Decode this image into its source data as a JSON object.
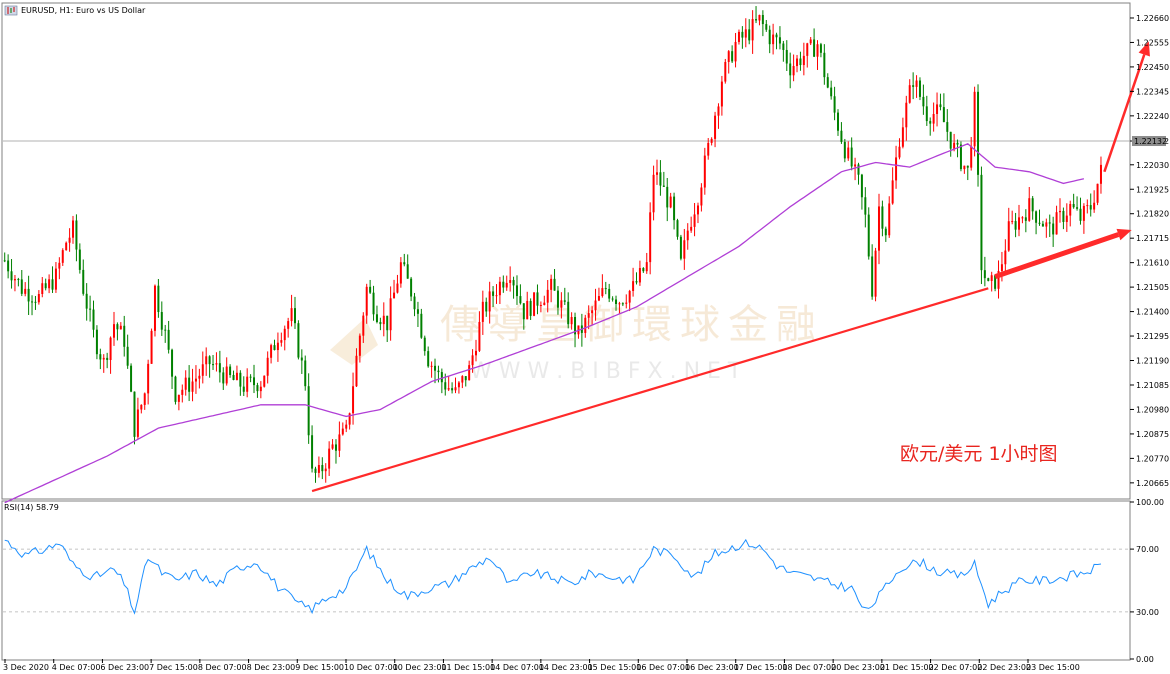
{
  "window": {
    "title": "EURUSD, H1: Euro vs US Dollar"
  },
  "annotation": {
    "text": "欧元/美元 1小时图"
  },
  "watermark": {
    "text_cn": "傳導皇御環球金融",
    "text_en": "W W W . B I B F X . N E T"
  },
  "colors": {
    "bull": "#ff0000",
    "bear": "#008000",
    "ma": "#b03fd6",
    "rsi": "#1e90ff",
    "arrow": "#ff2a2a"
  },
  "chart_data": [
    {
      "type": "candlestick",
      "symbol": "EURUSD",
      "timeframe": "H1",
      "price_ticks": [
        "1.22660",
        "1.22555",
        "1.22450",
        "1.22345",
        "1.22240",
        "1.22132",
        "1.22030",
        "1.21925",
        "1.21820",
        "1.21715",
        "1.21610",
        "1.21505",
        "1.21400",
        "1.21295",
        "1.21190",
        "1.21085",
        "1.20980",
        "1.20875",
        "1.20770",
        "1.20665"
      ],
      "current_price": "1.22132",
      "ylim": [
        1.206,
        1.2272
      ],
      "time_labels": [
        "3 Dec 2020",
        "4 Dec 07:00",
        "6 Dec 23:00",
        "7 Dec 15:00",
        "8 Dec 07:00",
        "8 Dec 23:00",
        "9 Dec 15:00",
        "10 Dec 07:00",
        "10 Dec 23:00",
        "11 Dec 15:00",
        "14 Dec 07:00",
        "14 Dec 23:00",
        "15 Dec 15:00",
        "16 Dec 07:00",
        "16 Dec 23:00",
        "17 Dec 15:00",
        "18 Dec 07:00",
        "20 Dec 23:00",
        "21 Dec 15:00",
        "22 Dec 07:00",
        "22 Dec 23:00",
        "23 Dec 15:00"
      ],
      "close_path": [
        [
          0,
          1.2162
        ],
        [
          5,
          1.215
        ],
        [
          10,
          1.2146
        ],
        [
          15,
          1.2155
        ],
        [
          18,
          1.217
        ],
        [
          20,
          1.2175
        ],
        [
          23,
          1.215
        ],
        [
          26,
          1.213
        ],
        [
          29,
          1.2118
        ],
        [
          32,
          1.2135
        ],
        [
          35,
          1.2128
        ],
        [
          38,
          1.209
        ],
        [
          41,
          1.2105
        ],
        [
          44,
          1.215
        ],
        [
          47,
          1.213
        ],
        [
          50,
          1.2105
        ],
        [
          55,
          1.211
        ],
        [
          60,
          1.2118
        ],
        [
          65,
          1.2112
        ],
        [
          70,
          1.2108
        ],
        [
          75,
          1.211
        ],
        [
          80,
          1.213
        ],
        [
          84,
          1.2138
        ],
        [
          88,
          1.211
        ],
        [
          90,
          1.207
        ],
        [
          92,
          1.207
        ],
        [
          96,
          1.2082
        ],
        [
          100,
          1.2088
        ],
        [
          103,
          1.212
        ],
        [
          106,
          1.215
        ],
        [
          109,
          1.214
        ],
        [
          112,
          1.2135
        ],
        [
          116,
          1.216
        ],
        [
          120,
          1.2145
        ],
        [
          124,
          1.212
        ],
        [
          128,
          1.211
        ],
        [
          132,
          1.2105
        ],
        [
          136,
          1.2115
        ],
        [
          140,
          1.214
        ],
        [
          144,
          1.215
        ],
        [
          148,
          1.2158
        ],
        [
          152,
          1.214
        ],
        [
          156,
          1.2145
        ],
        [
          160,
          1.215
        ],
        [
          164,
          1.214
        ],
        [
          168,
          1.213
        ],
        [
          172,
          1.214
        ],
        [
          176,
          1.215
        ],
        [
          180,
          1.2145
        ],
        [
          184,
          1.215
        ],
        [
          188,
          1.216
        ],
        [
          190,
          1.22
        ],
        [
          192,
          1.2195
        ],
        [
          195,
          1.2185
        ],
        [
          198,
          1.216
        ],
        [
          200,
          1.2175
        ],
        [
          203,
          1.219
        ],
        [
          206,
          1.221
        ],
        [
          210,
          1.224
        ],
        [
          214,
          1.2255
        ],
        [
          218,
          1.226
        ],
        [
          221,
          1.2265
        ],
        [
          224,
          1.2258
        ],
        [
          227,
          1.2255
        ],
        [
          230,
          1.2245
        ],
        [
          234,
          1.225
        ],
        [
          238,
          1.2255
        ],
        [
          242,
          1.223
        ],
        [
          246,
          1.221
        ],
        [
          250,
          1.2195
        ],
        [
          252,
          1.218
        ],
        [
          254,
          1.215
        ],
        [
          256,
          1.2185
        ],
        [
          258,
          1.2175
        ],
        [
          262,
          1.2215
        ],
        [
          266,
          1.224
        ],
        [
          270,
          1.2225
        ],
        [
          274,
          1.2225
        ],
        [
          278,
          1.221
        ],
        [
          282,
          1.22
        ],
        [
          284,
          1.223
        ],
        [
          286,
          1.216
        ],
        [
          288,
          1.215
        ],
        [
          291,
          1.2155
        ],
        [
          294,
          1.2175
        ],
        [
          297,
          1.218
        ],
        [
          300,
          1.2185
        ],
        [
          303,
          1.218
        ],
        [
          306,
          1.2175
        ],
        [
          309,
          1.218
        ],
        [
          312,
          1.2185
        ],
        [
          315,
          1.218
        ],
        [
          318,
          1.2185
        ],
        [
          321,
          1.22
        ]
      ],
      "moving_average": [
        [
          0,
          1.2058
        ],
        [
          30,
          1.2078
        ],
        [
          45,
          1.209
        ],
        [
          60,
          1.2095
        ],
        [
          75,
          1.21
        ],
        [
          88,
          1.21
        ],
        [
          100,
          1.2095
        ],
        [
          110,
          1.2098
        ],
        [
          125,
          1.211
        ],
        [
          140,
          1.2117
        ],
        [
          155,
          1.2125
        ],
        [
          170,
          1.2133
        ],
        [
          185,
          1.2142
        ],
        [
          200,
          1.2155
        ],
        [
          215,
          1.2168
        ],
        [
          230,
          1.2185
        ],
        [
          245,
          1.22
        ],
        [
          255,
          1.2204
        ],
        [
          265,
          1.2202
        ],
        [
          275,
          1.2208
        ],
        [
          282,
          1.2212
        ],
        [
          290,
          1.2202
        ],
        [
          300,
          1.22
        ],
        [
          310,
          1.2195
        ],
        [
          316,
          1.2197
        ]
      ],
      "support_line": {
        "from": [
          90,
          1.2063
        ],
        "to": [
          288,
          1.215
        ]
      },
      "arrows": [
        {
          "from": [
            290,
            1.2155
          ],
          "to": [
            330,
            1.2175
          ]
        },
        {
          "from": [
            322,
            1.22
          ],
          "to": [
            335,
            1.2256
          ]
        }
      ]
    },
    {
      "type": "line",
      "indicator": "RSI(14)",
      "label": "RSI(14) 58.79",
      "ylim": [
        0,
        100
      ],
      "ticks": [
        "100.00",
        "70.00",
        "30.00",
        "0.00"
      ],
      "levels": [
        70,
        30
      ],
      "values": [
        [
          0,
          76
        ],
        [
          6,
          66
        ],
        [
          12,
          70
        ],
        [
          16,
          74
        ],
        [
          20,
          60
        ],
        [
          26,
          52
        ],
        [
          32,
          57
        ],
        [
          35,
          48
        ],
        [
          38,
          30
        ],
        [
          42,
          65
        ],
        [
          46,
          55
        ],
        [
          50,
          50
        ],
        [
          56,
          55
        ],
        [
          62,
          47
        ],
        [
          68,
          58
        ],
        [
          74,
          62
        ],
        [
          80,
          46
        ],
        [
          86,
          35
        ],
        [
          90,
          32
        ],
        [
          95,
          40
        ],
        [
          100,
          45
        ],
        [
          106,
          70
        ],
        [
          112,
          50
        ],
        [
          118,
          40
        ],
        [
          124,
          45
        ],
        [
          130,
          48
        ],
        [
          136,
          57
        ],
        [
          142,
          65
        ],
        [
          148,
          47
        ],
        [
          154,
          55
        ],
        [
          160,
          52
        ],
        [
          166,
          48
        ],
        [
          172,
          55
        ],
        [
          178,
          52
        ],
        [
          184,
          50
        ],
        [
          190,
          70
        ],
        [
          196,
          66
        ],
        [
          202,
          52
        ],
        [
          208,
          67
        ],
        [
          214,
          72
        ],
        [
          218,
          74
        ],
        [
          222,
          70
        ],
        [
          226,
          60
        ],
        [
          230,
          55
        ],
        [
          236,
          52
        ],
        [
          242,
          48
        ],
        [
          248,
          45
        ],
        [
          252,
          30
        ],
        [
          256,
          40
        ],
        [
          262,
          58
        ],
        [
          268,
          62
        ],
        [
          274,
          55
        ],
        [
          280,
          53
        ],
        [
          284,
          60
        ],
        [
          288,
          35
        ],
        [
          292,
          43
        ],
        [
          298,
          50
        ],
        [
          304,
          50
        ],
        [
          310,
          52
        ],
        [
          316,
          55
        ],
        [
          321,
          59
        ]
      ]
    }
  ]
}
